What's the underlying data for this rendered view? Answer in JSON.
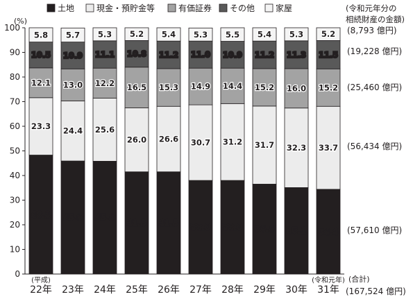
{
  "chart_data": {
    "type": "bar",
    "stacked": true,
    "y_unit_label": "(%)",
    "ylim": [
      0,
      100
    ],
    "y_ticks": [
      "0",
      "10",
      "20",
      "30",
      "40",
      "50",
      "60",
      "70",
      "80",
      "90",
      "100"
    ],
    "categories": [
      "22年",
      "23年",
      "24年",
      "25年",
      "26年",
      "27年",
      "28年",
      "29年",
      "30年",
      "31年"
    ],
    "category_notes": [
      {
        "category_index": 0,
        "text": "(平成)"
      },
      {
        "category_index": 9,
        "text": "(令和元年)"
      }
    ],
    "legend_position": "top",
    "series": [
      {
        "name": "土地",
        "color": "#231f20",
        "label_color": "#ffffff",
        "values": [
          48.3,
          45.9,
          45.8,
          41.5,
          41.5,
          38.0,
          38.0,
          36.5,
          35.1,
          34.4
        ]
      },
      {
        "name": "現金・預貯金等",
        "color": "#ececec",
        "label_color": "#231f20",
        "values": [
          23.3,
          24.4,
          25.6,
          26.0,
          26.6,
          30.7,
          31.2,
          31.7,
          32.3,
          33.7
        ]
      },
      {
        "name": "有価証券",
        "color": "#a3a3a3",
        "label_color": "#231f20",
        "values": [
          12.1,
          13.0,
          12.2,
          16.5,
          15.3,
          14.9,
          14.4,
          15.2,
          16.0,
          15.2
        ]
      },
      {
        "name": "その他",
        "color": "#595959",
        "label_color": "#ffffff",
        "values": [
          10.5,
          10.9,
          11.1,
          10.8,
          11.2,
          11.0,
          10.9,
          11.2,
          11.3,
          11.5
        ]
      },
      {
        "name": "家屋",
        "color": "#f4f4f4",
        "label_color": "#231f20",
        "values": [
          5.8,
          5.7,
          5.3,
          5.2,
          5.4,
          5.3,
          5.5,
          5.4,
          5.3,
          5.2
        ]
      }
    ],
    "right_header": [
      "(令和元年分の",
      "相続財産の金額)"
    ],
    "right_labels": [
      {
        "series": "家屋",
        "text": "(8,793 億円)"
      },
      {
        "series": "その他",
        "text": "(19,228 億円)"
      },
      {
        "series": "有価証券",
        "text": "(25,460 億円)"
      },
      {
        "series": "現金・預貯金等",
        "text": "(56,434 億円)"
      },
      {
        "series": "土地",
        "text": "(57,610 億円)"
      }
    ],
    "total_label": "(合計)",
    "total_value": "(167,524 億円)"
  }
}
